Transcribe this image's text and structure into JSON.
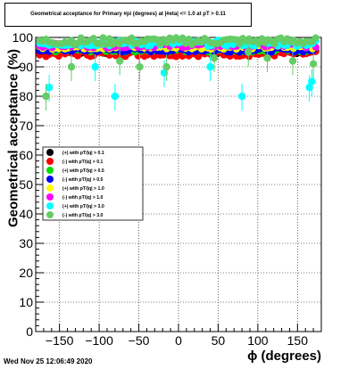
{
  "title": "Geometrical acceptance for Primary #pi (degrees) at |#eta| <= 1.0 at pT > 0.11",
  "timestamp": "Wed Nov 25 12:06:49 2020",
  "chart_data": {
    "type": "scatter",
    "title": "Geometrical acceptance for Primary #pi (degrees) at |#eta| <= 1.0 at pT > 0.11",
    "xlabel": "ϕ (degrees)",
    "ylabel": "Geometrical acceptance (%)",
    "xlim": [
      -180,
      180
    ],
    "ylim": [
      0,
      100
    ],
    "xticks": [
      -150,
      -100,
      -50,
      0,
      50,
      100,
      150
    ],
    "yticks": [
      0,
      10,
      20,
      30,
      40,
      50,
      60,
      70,
      80,
      90,
      100
    ],
    "grid": true,
    "legend_position": "middle-left",
    "series": [
      {
        "name": "(+) with pT/|q| > 0.1",
        "color": "#000000",
        "marker": "circle",
        "x_range": [
          -175,
          175
        ],
        "y_band": [
          94.5,
          95.5
        ]
      },
      {
        "name": "(-) with pT/|q| > 0.1",
        "color": "#ff0000",
        "marker": "circle",
        "x_range": [
          -175,
          175
        ],
        "y_band": [
          93.5,
          95.5
        ]
      },
      {
        "name": "(+) with pT/|q| > 0.5",
        "color": "#00dd00",
        "marker": "circle",
        "x_range": [
          -175,
          175
        ],
        "y_band": [
          95,
          96.5
        ]
      },
      {
        "name": "(-) with pT/|q| > 0.5",
        "color": "#0000ff",
        "marker": "circle",
        "x_range": [
          -175,
          175
        ],
        "y_band": [
          95,
          96.5
        ]
      },
      {
        "name": "(+) with pT/|q| > 1.0",
        "color": "#ffff00",
        "marker": "circle",
        "x_range": [
          -175,
          175
        ],
        "y_band": [
          96,
          97.5
        ]
      },
      {
        "name": "(-) with pT/|q| > 1.0",
        "color": "#ff00ff",
        "marker": "circle",
        "x_range": [
          -175,
          175
        ],
        "y_band": [
          96.5,
          98
        ]
      },
      {
        "name": "(+) with pT/|q| > 3.0",
        "color": "#00ffff",
        "marker": "circle",
        "x_range": [
          -175,
          175
        ],
        "y_band": [
          97,
          99
        ],
        "outliers": [
          [
            -163,
            83
          ],
          [
            -105,
            90
          ],
          [
            -80,
            80
          ],
          [
            -18,
            88
          ],
          [
            40,
            90
          ],
          [
            80,
            80
          ],
          [
            165,
            83
          ],
          [
            168,
            85
          ]
        ]
      },
      {
        "name": "(-) with pT/|q| > 3.0",
        "color": "#66cc66",
        "marker": "circle",
        "x_range": [
          -175,
          175
        ],
        "y_band": [
          97.5,
          100
        ],
        "outliers": [
          [
            -167,
            80
          ],
          [
            -135,
            90
          ],
          [
            -74,
            92
          ],
          [
            -49,
            90
          ],
          [
            -15,
            90
          ],
          [
            45,
            93
          ],
          [
            88,
            95
          ],
          [
            112,
            93
          ],
          [
            144,
            92
          ],
          [
            170,
            91
          ]
        ]
      }
    ]
  }
}
